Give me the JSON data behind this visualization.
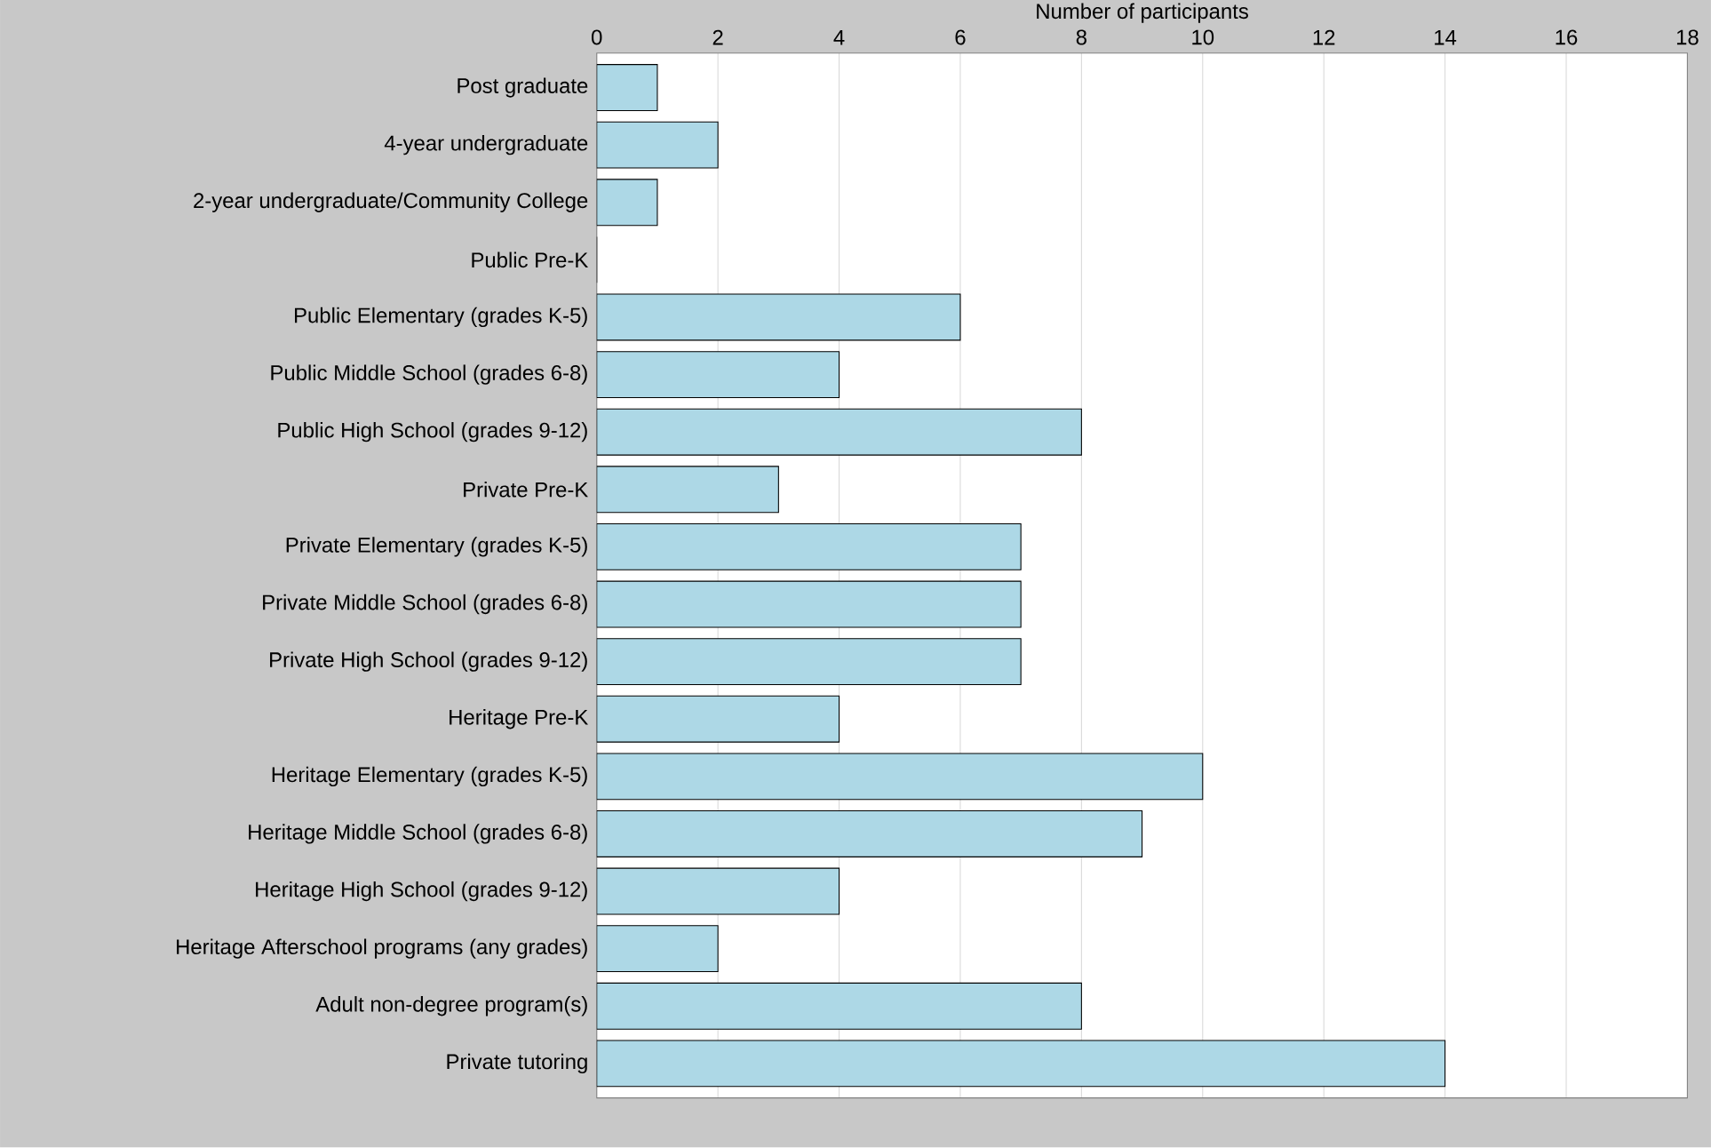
{
  "chart_data": {
    "type": "bar",
    "orientation": "horizontal",
    "xlabel": "Number of participants",
    "categories": [
      "Post graduate",
      "4-year undergraduate",
      "2-year undergraduate/Community College",
      "Public Pre-K",
      "Public Elementary (grades K-5)",
      "Public Middle School (grades 6-8)",
      "Public High School (grades 9-12)",
      "Private Pre-K",
      "Private Elementary (grades K-5)",
      "Private Middle School (grades 6-8)",
      "Private High School (grades 9-12)",
      "Heritage Pre-K",
      "Heritage Elementary (grades K-5)",
      "Heritage Middle School (grades 6-8)",
      "Heritage High School (grades 9-12)",
      "Heritage Afterschool programs (any grades)",
      "Adult non-degree program(s)",
      "Private tutoring"
    ],
    "values": [
      1,
      2,
      1,
      0,
      6,
      4,
      8,
      3,
      7,
      7,
      7,
      4,
      10,
      9,
      4,
      2,
      8,
      14
    ],
    "color": "#add8e6",
    "xlim": [
      0,
      18
    ],
    "xticks": [
      0,
      2,
      4,
      6,
      8,
      10,
      12,
      14,
      16,
      18
    ],
    "grid": "x"
  }
}
